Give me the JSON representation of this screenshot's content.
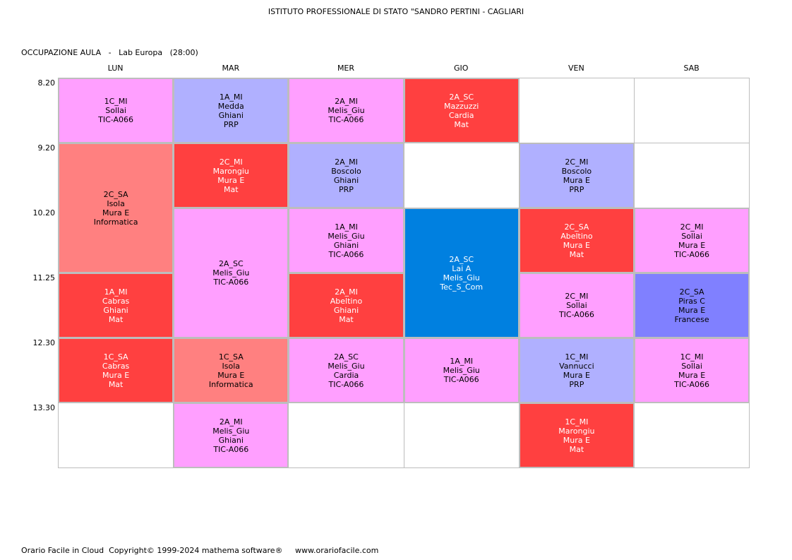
{
  "header": {
    "school_title": "ISTITUTO PROFESSIONALE DI STATO \"SANDRO PERTINI - CAGLIARI",
    "subtitle": "OCCUPAZIONE AULA   -   Lab Europa   (28:00)"
  },
  "days": [
    "LUN",
    "MAR",
    "MER",
    "GIO",
    "VEN",
    "SAB"
  ],
  "times": [
    "8.20",
    "9.20",
    "10.20",
    "11.25",
    "12.30",
    "13.30"
  ],
  "colors": {
    "pink": "#ff9fff",
    "lavender": "#b0b0ff",
    "periwinkle": "#8080ff",
    "red": "#ff4040",
    "salmon": "#ff8080",
    "blue": "#0080e0",
    "empty": "#ffffff"
  },
  "lessons": [
    {
      "day": 0,
      "slot": 0,
      "span": 1,
      "color": "pink",
      "lines": [
        "1C_MI",
        "Sollai",
        "TIC-A066"
      ]
    },
    {
      "day": 0,
      "slot": 1,
      "span": 2,
      "color": "salmon",
      "lines": [
        "2C_SA",
        "Isola",
        "Mura E",
        "Informatica"
      ]
    },
    {
      "day": 0,
      "slot": 3,
      "span": 1,
      "color": "red",
      "lines": [
        "1A_MI",
        "Cabras",
        "Ghiani",
        "Mat"
      ]
    },
    {
      "day": 0,
      "slot": 4,
      "span": 1,
      "color": "red",
      "lines": [
        "1C_SA",
        "Cabras",
        "Mura E",
        "Mat"
      ]
    },
    {
      "day": 1,
      "slot": 0,
      "span": 1,
      "color": "lavender",
      "lines": [
        "1A_MI",
        "Medda",
        "Ghiani",
        "PRP"
      ]
    },
    {
      "day": 1,
      "slot": 1,
      "span": 1,
      "color": "red",
      "lines": [
        "2C_MI",
        "Marongiu",
        "Mura E",
        "Mat"
      ]
    },
    {
      "day": 1,
      "slot": 2,
      "span": 2,
      "color": "pink",
      "lines": [
        "2A_SC",
        "Melis_Giu",
        "TIC-A066"
      ]
    },
    {
      "day": 1,
      "slot": 4,
      "span": 1,
      "color": "salmon",
      "lines": [
        "1C_SA",
        "Isola",
        "Mura E",
        "Informatica"
      ]
    },
    {
      "day": 1,
      "slot": 5,
      "span": 1,
      "color": "pink",
      "lines": [
        "2A_MI",
        "Melis_Giu",
        "Ghiani",
        "TIC-A066"
      ]
    },
    {
      "day": 2,
      "slot": 0,
      "span": 1,
      "color": "pink",
      "lines": [
        "2A_MI",
        "Melis_Giu",
        "TIC-A066"
      ]
    },
    {
      "day": 2,
      "slot": 1,
      "span": 1,
      "color": "lavender",
      "lines": [
        "2A_MI",
        "Boscolo",
        "Ghiani",
        "PRP"
      ]
    },
    {
      "day": 2,
      "slot": 2,
      "span": 1,
      "color": "pink",
      "lines": [
        "1A_MI",
        "Melis_Giu",
        "Ghiani",
        "TIC-A066"
      ]
    },
    {
      "day": 2,
      "slot": 3,
      "span": 1,
      "color": "red",
      "lines": [
        "2A_MI",
        "Abeltino",
        "Ghiani",
        "Mat"
      ]
    },
    {
      "day": 2,
      "slot": 4,
      "span": 1,
      "color": "pink",
      "lines": [
        "2A_SC",
        "Melis_Giu",
        "Cardia",
        "TIC-A066"
      ]
    },
    {
      "day": 3,
      "slot": 0,
      "span": 1,
      "color": "red",
      "lines": [
        "2A_SC",
        "Mazzuzzi",
        "Cardia",
        "Mat"
      ]
    },
    {
      "day": 3,
      "slot": 2,
      "span": 2,
      "color": "blue",
      "lines": [
        "2A_SC",
        "Lai A",
        "Melis_Giu",
        "Tec_S_Com"
      ]
    },
    {
      "day": 3,
      "slot": 4,
      "span": 1,
      "color": "pink",
      "lines": [
        "1A_MI",
        "Melis_Giu",
        "TIC-A066"
      ]
    },
    {
      "day": 4,
      "slot": 1,
      "span": 1,
      "color": "lavender",
      "lines": [
        "2C_MI",
        "Boscolo",
        "Mura E",
        "PRP"
      ]
    },
    {
      "day": 4,
      "slot": 2,
      "span": 1,
      "color": "red",
      "lines": [
        "2C_SA",
        "Abeltino",
        "Mura E",
        "Mat"
      ]
    },
    {
      "day": 4,
      "slot": 3,
      "span": 1,
      "color": "pink",
      "lines": [
        "2C_MI",
        "Sollai",
        "TIC-A066"
      ]
    },
    {
      "day": 4,
      "slot": 4,
      "span": 1,
      "color": "lavender",
      "lines": [
        "1C_MI",
        "Vannucci",
        "Mura E",
        "PRP"
      ]
    },
    {
      "day": 4,
      "slot": 5,
      "span": 1,
      "color": "red",
      "lines": [
        "1C_MI",
        "Marongiu",
        "Mura E",
        "Mat"
      ]
    },
    {
      "day": 5,
      "slot": 2,
      "span": 1,
      "color": "pink",
      "lines": [
        "2C_MI",
        "Sollai",
        "Mura E",
        "TIC-A066"
      ]
    },
    {
      "day": 5,
      "slot": 3,
      "span": 1,
      "color": "periwinkle",
      "lines": [
        "2C_SA",
        "Piras C",
        "Mura E",
        "Francese"
      ]
    },
    {
      "day": 5,
      "slot": 4,
      "span": 1,
      "color": "pink",
      "lines": [
        "1C_MI",
        "Sollai",
        "Mura E",
        "TIC-A066"
      ]
    }
  ],
  "footer": "Orario Facile in Cloud  Copyright© 1999-2024 mathema software®     www.orariofacile.com"
}
